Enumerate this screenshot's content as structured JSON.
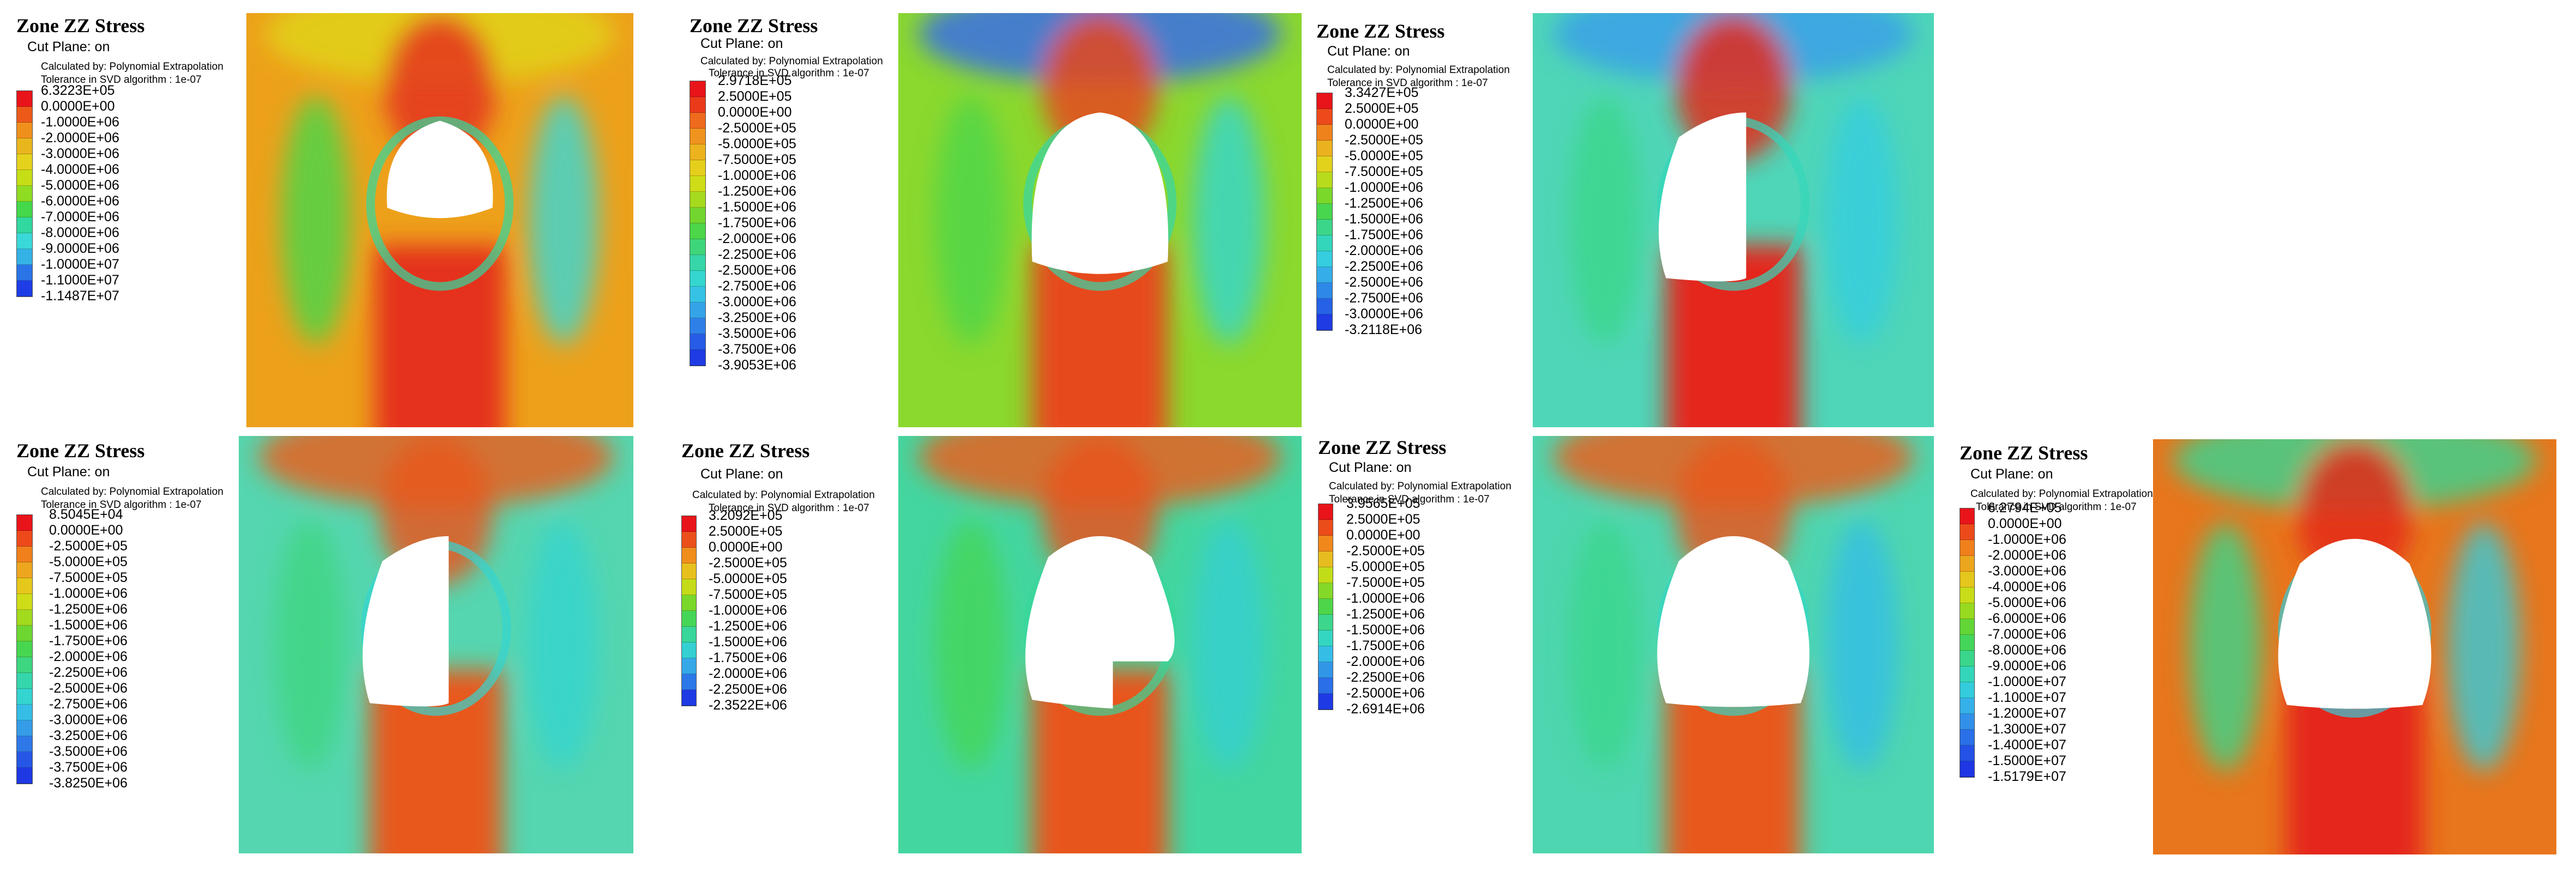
{
  "chart_data": [
    {
      "type": "heatmap",
      "title": "Zone ZZ Stress",
      "subtitle": "Cut Plane: on",
      "method": "Calculated by: Polynomial Extrapolation",
      "tolerance": "Tolerance in SVD algorithm : 1e-07",
      "legend_labels": [
        "6.3223E+05",
        "0.0000E+00",
        "-1.0000E+06",
        "-2.0000E+06",
        "-3.0000E+06",
        "-4.0000E+06",
        "-5.0000E+06",
        "-6.0000E+06",
        "-7.0000E+06",
        "-8.0000E+06",
        "-9.0000E+06",
        "-1.0000E+07",
        "-1.1000E+07",
        "-1.1487E+07"
      ],
      "legend_colors": [
        "#e8141a",
        "#ec5a1a",
        "#f0901c",
        "#e9b61e",
        "#e4d21c",
        "#c6de16",
        "#8fdc22",
        "#44d84a",
        "#31d8a0",
        "#3ad8d8",
        "#34b2e6",
        "#2a74e8",
        "#1e3de6"
      ],
      "field": {
        "background": "#eda11b",
        "upper_band": "#e0d317",
        "stressed_zone": "#e4321c",
        "hole_shape": "crown"
      }
    },
    {
      "type": "heatmap",
      "title": "Zone ZZ Stress",
      "subtitle": "Cut Plane: on",
      "method": "Calculated by: Polynomial Extrapolation",
      "tolerance": "Tolerance in SVD algorithm : 1e-07",
      "legend_labels": [
        "2.9718E+05",
        "2.5000E+05",
        "0.0000E+00",
        "-2.5000E+05",
        "-5.0000E+05",
        "-7.5000E+05",
        "-1.0000E+06",
        "-1.2500E+06",
        "-1.5000E+06",
        "-1.7500E+06",
        "-2.0000E+06",
        "-2.2500E+06",
        "-2.5000E+06",
        "-2.7500E+06",
        "-3.0000E+06",
        "-3.2500E+06",
        "-3.5000E+06",
        "-3.7500E+06",
        "-3.9053E+06"
      ],
      "legend_colors": [
        "#e8141a",
        "#ea3a1a",
        "#ee6a1c",
        "#f0931e",
        "#ecb31e",
        "#e6cf1c",
        "#cfdc18",
        "#a6da1e",
        "#72d62e",
        "#4cd64a",
        "#3fd67a",
        "#36d6a8",
        "#34d6cf",
        "#35c2e4",
        "#35a3e8",
        "#2e80e8",
        "#265ce6",
        "#1e3be4"
      ],
      "field": {
        "background": "#8bd82e",
        "upper_band": "#3a6ee6",
        "stressed_zone": "#e6481c",
        "hole_shape": "arch"
      }
    },
    {
      "type": "heatmap",
      "title": "Zone ZZ Stress",
      "subtitle": "Cut Plane: on",
      "method": "Calculated by: Polynomial Extrapolation",
      "tolerance": "Tolerance in SVD algorithm : 1e-07",
      "legend_labels": [
        "3.3427E+05",
        "2.5000E+05",
        "0.0000E+00",
        "-2.5000E+05",
        "-5.0000E+05",
        "-7.5000E+05",
        "-1.0000E+06",
        "-1.2500E+06",
        "-1.5000E+06",
        "-1.7500E+06",
        "-2.0000E+06",
        "-2.2500E+06",
        "-2.5000E+06",
        "-2.7500E+06",
        "-3.0000E+06",
        "-3.2118E+06"
      ],
      "legend_colors": [
        "#e8141a",
        "#ec4a1a",
        "#f0821c",
        "#eab21e",
        "#e2d21c",
        "#b8dc1c",
        "#7ad82a",
        "#48d64e",
        "#3cd68a",
        "#34d6bb",
        "#35cde0",
        "#35ade8",
        "#2e88e8",
        "#2662e6",
        "#1e3be4"
      ],
      "field": {
        "background": "#4fd6b8",
        "upper_band": "#3aa0e8",
        "stressed_zone": "#e4281a",
        "hole_shape": "half"
      }
    },
    {
      "type": "heatmap",
      "title": "Zone ZZ Stress",
      "subtitle": "Cut Plane: on",
      "method": "Calculated by: Polynomial Extrapolation",
      "tolerance": "Tolerance in SVD algorithm : 1e-07",
      "legend_labels": [
        "8.5045E+04",
        "0.0000E+00",
        "-2.5000E+05",
        "-5.0000E+05",
        "-7.5000E+05",
        "-1.0000E+06",
        "-1.2500E+06",
        "-1.5000E+06",
        "-1.7500E+06",
        "-2.0000E+06",
        "-2.2500E+06",
        "-2.5000E+06",
        "-2.7500E+06",
        "-3.0000E+06",
        "-3.2500E+06",
        "-3.5000E+06",
        "-3.7500E+06",
        "-3.8250E+06"
      ],
      "legend_colors": [
        "#e8141a",
        "#ec4a1a",
        "#f0801c",
        "#eda61e",
        "#e6c81c",
        "#cfdc18",
        "#a2da1e",
        "#6ed630",
        "#48d650",
        "#3ed680",
        "#36d6ac",
        "#34d4d0",
        "#35bde6",
        "#359ce8",
        "#2e78e8",
        "#2656e6",
        "#1e38e4"
      ],
      "field": {
        "background": "#55d6b0",
        "upper_band": "#e8601c",
        "stressed_zone": "#e8581c",
        "hole_shape": "half"
      }
    },
    {
      "type": "heatmap",
      "title": "Zone ZZ Stress",
      "subtitle": "Cut Plane: on",
      "method": "Calculated by: Polynomial Extrapolation",
      "tolerance": "Tolerance in SVD algorithm : 1e-07",
      "legend_labels": [
        "3.2092E+05",
        "2.5000E+05",
        "0.0000E+00",
        "-2.5000E+05",
        "-5.0000E+05",
        "-7.5000E+05",
        "-1.0000E+06",
        "-1.2500E+06",
        "-1.5000E+06",
        "-1.7500E+06",
        "-2.0000E+06",
        "-2.2500E+06",
        "-2.3522E+06"
      ],
      "legend_colors": [
        "#e8141a",
        "#ec501a",
        "#f08e1c",
        "#e8c01e",
        "#c4dc18",
        "#7ad82a",
        "#46d656",
        "#38d69a",
        "#34d0d2",
        "#35a8e8",
        "#2c78e8",
        "#1e3ae4"
      ],
      "field": {
        "background": "#44d6a0",
        "upper_band": "#e8601c",
        "stressed_zone": "#e8541c",
        "hole_shape": "step"
      }
    },
    {
      "type": "heatmap",
      "title": "Zone ZZ Stress",
      "subtitle": "Cut Plane: on",
      "method": "Calculated by: Polynomial Extrapolation",
      "tolerance": "Tolerance in SVD algorithm : 1e-07",
      "legend_labels": [
        "3.9565E+05",
        "2.5000E+05",
        "0.0000E+00",
        "-2.5000E+05",
        "-5.0000E+05",
        "-7.5000E+05",
        "-1.0000E+06",
        "-1.2500E+06",
        "-1.5000E+06",
        "-1.7500E+06",
        "-2.0000E+06",
        "-2.2500E+06",
        "-2.5000E+06",
        "-2.6914E+06"
      ],
      "legend_colors": [
        "#e8141a",
        "#ec4c1a",
        "#f0881c",
        "#e6bc1e",
        "#c2dc18",
        "#84d828",
        "#4ed64a",
        "#3cd68c",
        "#34d6c2",
        "#35bde6",
        "#3296e8",
        "#2a6ee8",
        "#1e3ae4"
      ],
      "field": {
        "background": "#4ed6b0",
        "upper_band": "#e8601c",
        "stressed_zone": "#e8581c",
        "hole_shape": "full"
      }
    },
    {
      "type": "heatmap",
      "title": "Zone ZZ Stress",
      "subtitle": "Cut Plane: on",
      "method": "Calculated by: Polynomial Extrapolation",
      "tolerance": "Tolerance in SVD algorithm : 1e-07",
      "legend_labels": [
        "6.2794E+05",
        "0.0000E+00",
        "-1.0000E+06",
        "-2.0000E+06",
        "-3.0000E+06",
        "-4.0000E+06",
        "-5.0000E+06",
        "-6.0000E+06",
        "-7.0000E+06",
        "-8.0000E+06",
        "-9.0000E+06",
        "-1.0000E+07",
        "-1.1000E+07",
        "-1.2000E+07",
        "-1.3000E+07",
        "-1.4000E+07",
        "-1.5000E+07",
        "-1.5179E+07"
      ],
      "legend_colors": [
        "#e8141a",
        "#ec4a1a",
        "#f0801c",
        "#eca61e",
        "#e4c61c",
        "#c8dc18",
        "#98da20",
        "#62d636",
        "#44d65a",
        "#3ad68c",
        "#34d6ba",
        "#34ccdc",
        "#35b0e8",
        "#3290e8",
        "#2a70e8",
        "#2452e6",
        "#1e36e4"
      ],
      "field": {
        "background": "#e8761c",
        "upper_band": "#40d08c",
        "stressed_zone": "#e4281a",
        "hole_shape": "full"
      }
    }
  ]
}
